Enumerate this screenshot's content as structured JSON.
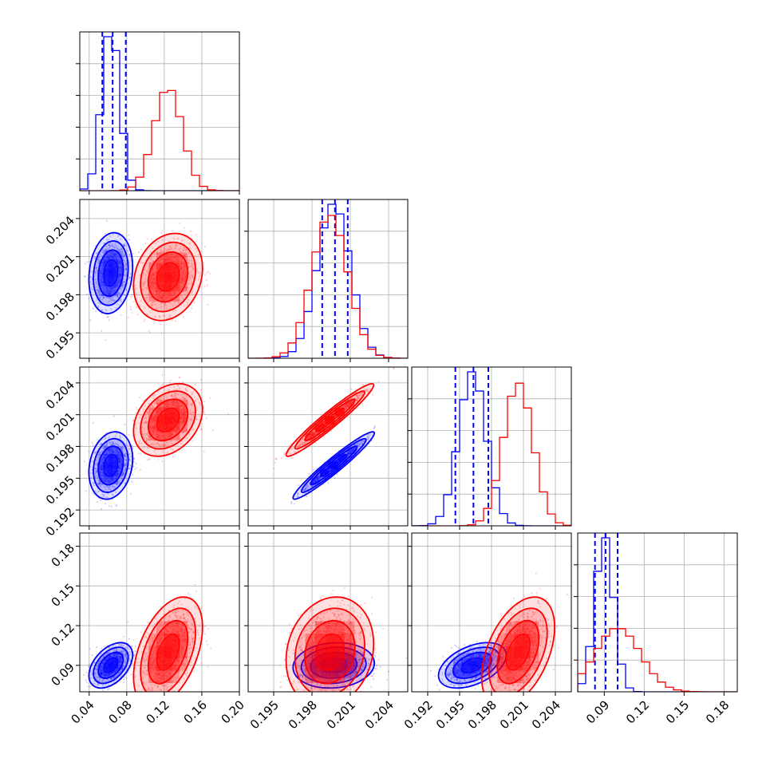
{
  "chart_data": {
    "type": "corner",
    "title": "",
    "grid": true,
    "legend": "none",
    "parameters": [
      {
        "label": "",
        "range": [
          0.03,
          0.2
        ],
        "ticks": [
          0.04,
          0.08,
          0.12,
          0.16,
          0.2
        ],
        "tick_labels": [
          "0.04",
          "0.08",
          "0.12",
          "0.16",
          "0.20"
        ]
      },
      {
        "label": "",
        "range": [
          0.193,
          0.2055
        ],
        "ticks": [
          0.195,
          0.198,
          0.201,
          0.204
        ],
        "tick_labels": [
          "0.195",
          "0.198",
          "0.201",
          "0.204"
        ]
      },
      {
        "label": "",
        "range": [
          0.1905,
          0.2055
        ],
        "ticks": [
          0.192,
          0.195,
          0.198,
          0.201,
          0.204
        ],
        "tick_labels": [
          "0.192",
          "0.195",
          "0.198",
          "0.201",
          "0.204"
        ]
      },
      {
        "label": "",
        "range": [
          0.07,
          0.19
        ],
        "ticks": [
          0.09,
          0.12,
          0.15,
          0.18
        ],
        "tick_labels": [
          "0.09",
          "0.12",
          "0.15",
          "0.18"
        ]
      }
    ],
    "series": [
      {
        "color": "#0000ff",
        "means": [
          0.063,
          0.1997,
          0.1962,
          0.09
        ],
        "sigmas": [
          0.0095,
          0.0013,
          0.0013,
          0.007
        ],
        "quantiles": [
          [
            0.054,
            0.065,
            0.079
          ],
          [
            0.1988,
            0.1998,
            0.2008
          ],
          [
            0.1946,
            0.1963,
            0.1977
          ],
          [
            0.083,
            0.091,
            0.1
          ]
        ],
        "correlations": {
          "0-1": 0.15,
          "0-2": 0.2,
          "0-3": 0.45,
          "1-2": 0.96,
          "1-3": 0.1,
          "2-3": 0.45
        }
      },
      {
        "color": "#ff0000",
        "means": [
          0.124,
          0.1994,
          0.2005,
          0.1
        ],
        "sigmas": [
          0.015,
          0.0014,
          0.0014,
          0.017
        ],
        "correlations": {
          "0-1": 0.2,
          "0-2": 0.3,
          "0-3": 0.45,
          "1-2": 0.96,
          "1-3": 0.15,
          "2-3": 0.45
        }
      }
    ]
  }
}
